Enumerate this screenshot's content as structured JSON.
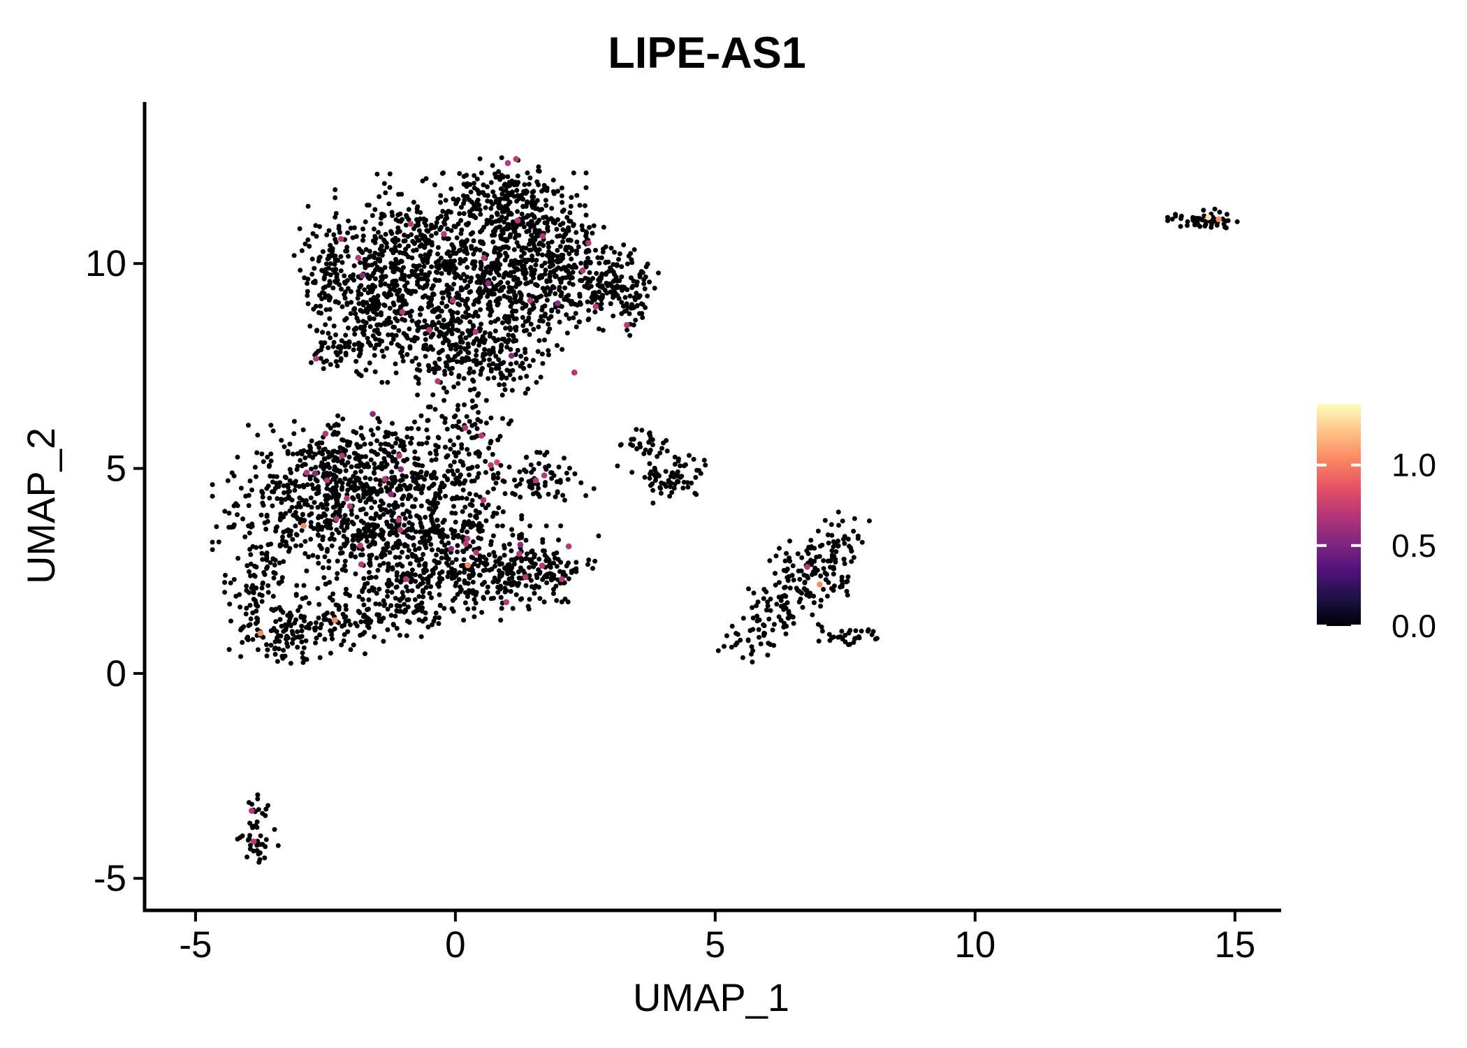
{
  "chart_data": {
    "type": "scatter",
    "title": "LIPE-AS1",
    "xlabel": "UMAP_1",
    "ylabel": "UMAP_2",
    "xlim": [
      -5.98,
      15.89
    ],
    "ylim": [
      -5.78,
      13.94
    ],
    "x_ticks": [
      -5,
      0,
      5,
      10,
      15
    ],
    "y_ticks": [
      -5,
      0,
      5,
      10
    ],
    "grid": false,
    "background": "#FFFFFF",
    "axis_color": "#000000",
    "point_color_base": "#000004",
    "seed": 11,
    "colorbar": {
      "position": "right",
      "ticks": [
        0.0,
        0.5,
        1.0
      ],
      "tick_labels": [
        "0.0",
        "0.5",
        "1.0"
      ],
      "domain": [
        0,
        1.38
      ],
      "colormap": "magma",
      "stops": [
        "#000004",
        "#1D1147",
        "#51127C",
        "#822681",
        "#B63679",
        "#E65164",
        "#FB8861",
        "#FEC287",
        "#FCFDBF"
      ]
    },
    "clusters": [
      {
        "name": "top-main-cluster",
        "blobs": [
          [
            0.1,
            10.6,
            1.05,
            0.7,
            400
          ],
          [
            -1.4,
            9.7,
            0.65,
            0.75,
            280
          ],
          [
            0.6,
            9.4,
            0.85,
            0.65,
            340
          ],
          [
            1.9,
            9.9,
            0.55,
            0.65,
            190
          ],
          [
            3.1,
            9.35,
            0.42,
            0.48,
            160
          ],
          [
            0.9,
            11.65,
            0.5,
            0.42,
            130
          ],
          [
            1.6,
            11.0,
            0.45,
            0.4,
            90
          ],
          [
            -0.4,
            8.25,
            0.95,
            0.5,
            240
          ],
          [
            0.5,
            7.5,
            0.65,
            0.38,
            110
          ],
          [
            -2.55,
            9.9,
            0.33,
            0.65,
            75
          ],
          [
            -1.8,
            8.4,
            0.45,
            0.45,
            80
          ],
          [
            0.2,
            6.5,
            0.45,
            0.4,
            45
          ],
          [
            -2.5,
            7.6,
            0.28,
            0.13,
            12
          ]
        ]
      },
      {
        "name": "middle-left-cluster",
        "blobs": [
          [
            -2.95,
            4.1,
            0.75,
            0.85,
            310
          ],
          [
            -1.6,
            3.9,
            0.75,
            0.75,
            300
          ],
          [
            -0.45,
            3.15,
            0.75,
            0.65,
            260
          ],
          [
            0.6,
            2.45,
            0.75,
            0.5,
            210
          ],
          [
            1.7,
            2.55,
            0.5,
            0.35,
            100
          ],
          [
            -1.2,
            5.25,
            0.65,
            0.45,
            130
          ],
          [
            -2.4,
            5.3,
            0.5,
            0.4,
            90
          ],
          [
            0.0,
            4.6,
            0.5,
            0.4,
            70
          ],
          [
            1.7,
            4.75,
            0.42,
            0.28,
            70
          ],
          [
            -3.75,
            2.3,
            0.3,
            0.75,
            90
          ],
          [
            -3.3,
            0.95,
            0.4,
            0.38,
            85
          ],
          [
            -2.2,
            1.35,
            0.55,
            0.42,
            110
          ],
          [
            -1.0,
            1.7,
            0.5,
            0.38,
            85
          ],
          [
            0.2,
            5.6,
            0.45,
            0.3,
            40
          ]
        ]
      },
      {
        "name": "small-center-cluster",
        "blobs": [
          [
            3.55,
            5.65,
            0.22,
            0.3,
            28
          ],
          [
            4.15,
            4.8,
            0.33,
            0.28,
            70
          ]
        ]
      },
      {
        "name": "right-cluster",
        "blobs": [
          [
            6.9,
            2.6,
            0.42,
            0.38,
            95
          ],
          [
            5.75,
            0.9,
            0.3,
            0.27,
            38
          ],
          [
            6.35,
            1.65,
            0.3,
            0.3,
            32
          ],
          [
            7.6,
            0.9,
            0.28,
            0.18,
            30
          ],
          [
            7.5,
            3.2,
            0.22,
            0.32,
            28
          ],
          [
            6.5,
            2.0,
            0.5,
            0.4,
            30
          ]
        ]
      },
      {
        "name": "bottom-left-cluster",
        "blobs": [
          [
            -3.85,
            -3.35,
            0.12,
            0.22,
            16
          ],
          [
            -3.8,
            -4.15,
            0.17,
            0.28,
            26
          ]
        ]
      },
      {
        "name": "top-right-cluster",
        "blobs": [
          [
            14.35,
            11.05,
            0.28,
            0.09,
            40
          ],
          [
            14.7,
            11.1,
            0.15,
            0.1,
            14
          ]
        ]
      }
    ],
    "highlighted_cells": [
      [
        1.01,
        12.45,
        0.7
      ],
      [
        1.17,
        12.55,
        0.7
      ],
      [
        -0.86,
        10.97,
        0.7
      ],
      [
        -0.22,
        10.72,
        0.7
      ],
      [
        -1.87,
        10.14,
        0.7
      ],
      [
        -1.79,
        9.71,
        0.55
      ],
      [
        1.2,
        11.05,
        0.7
      ],
      [
        1.68,
        10.67,
        0.7
      ],
      [
        2.56,
        10.5,
        0.7
      ],
      [
        0.55,
        10.14,
        0.7
      ],
      [
        2.45,
        9.83,
        0.7
      ],
      [
        1.44,
        9.1,
        0.7
      ],
      [
        1.97,
        9.03,
        0.55
      ],
      [
        2.7,
        8.95,
        0.7
      ],
      [
        3.3,
        8.5,
        0.7
      ],
      [
        0.39,
        8.33,
        0.7
      ],
      [
        -0.5,
        8.38,
        0.7
      ],
      [
        -1.02,
        8.82,
        0.7
      ],
      [
        -2.68,
        7.68,
        0.7
      ],
      [
        -0.34,
        7.13,
        0.7
      ],
      [
        0.19,
        5.99,
        0.7
      ],
      [
        -1.59,
        6.33,
        0.55
      ],
      [
        2.29,
        7.34,
        0.7
      ],
      [
        1.08,
        7.75,
        0.55
      ],
      [
        -0.05,
        9.1,
        0.7
      ],
      [
        0.63,
        9.52,
        0.55
      ],
      [
        -2.2,
        10.6,
        0.7
      ],
      [
        -3.75,
        0.98,
        1.05
      ],
      [
        -2.92,
        3.6,
        1.05
      ],
      [
        -2.32,
        1.3,
        1.05
      ],
      [
        0.24,
        2.64,
        1.05
      ],
      [
        0.5,
        5.8,
        0.7
      ],
      [
        0.8,
        5.15,
        0.8
      ],
      [
        0.68,
        5.08,
        0.7
      ],
      [
        1.71,
        4.83,
        0.7
      ],
      [
        1.55,
        4.71,
        0.7
      ],
      [
        0.54,
        4.23,
        0.7
      ],
      [
        -1.08,
        5.31,
        0.7
      ],
      [
        -1.05,
        4.98,
        0.55
      ],
      [
        -1.09,
        3.74,
        0.7
      ],
      [
        0.2,
        3.17,
        0.7
      ],
      [
        1.23,
        2.92,
        0.7
      ],
      [
        2.18,
        3.1,
        0.7
      ],
      [
        2.05,
        2.3,
        0.7
      ],
      [
        -2.5,
        5.85,
        0.7
      ],
      [
        -2.18,
        5.31,
        0.7
      ],
      [
        -2.86,
        4.9,
        0.7
      ],
      [
        -2.47,
        4.71,
        0.7
      ],
      [
        -1.36,
        4.74,
        0.7
      ],
      [
        -2.09,
        4.27,
        0.7
      ],
      [
        -2.29,
        3.77,
        0.7
      ],
      [
        -1.24,
        4.37,
        0.55
      ],
      [
        -2.03,
        4.08,
        0.7
      ],
      [
        -1.06,
        3.5,
        0.7
      ],
      [
        -1.83,
        3.12,
        0.7
      ],
      [
        -1.81,
        2.66,
        0.7
      ],
      [
        0.23,
        3.29,
        0.7
      ],
      [
        -0.08,
        3.04,
        0.55
      ],
      [
        0.4,
        2.95,
        0.7
      ],
      [
        1.25,
        3.14,
        0.55
      ],
      [
        1.67,
        2.63,
        0.7
      ],
      [
        1.35,
        2.35,
        0.7
      ],
      [
        0.98,
        1.74,
        0.7
      ],
      [
        -0.95,
        2.3,
        0.7
      ],
      [
        -2.7,
        4.88,
        0.55
      ],
      [
        6.77,
        2.6,
        0.7
      ],
      [
        7.01,
        2.17,
        1.05
      ],
      [
        -3.92,
        -3.35,
        0.7
      ],
      [
        -3.88,
        -4.1,
        0.7
      ],
      [
        14.49,
        11.13,
        1.3
      ],
      [
        14.69,
        11.08,
        1.05
      ]
    ]
  }
}
